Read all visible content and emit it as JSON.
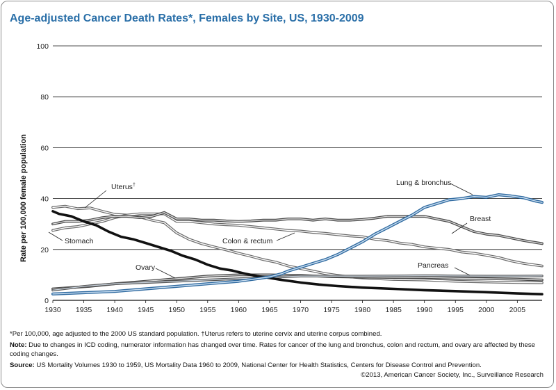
{
  "chart_data": {
    "type": "line",
    "title": "Age-adjusted Cancer Death Rates*, Females by Site, US, 1930-2009",
    "ylabel": "Rate per 100,000 female population",
    "xlabel": "",
    "xlim": [
      1930,
      2009
    ],
    "ylim": [
      0,
      100
    ],
    "x_ticks": [
      1930,
      1935,
      1940,
      1945,
      1950,
      1955,
      1960,
      1965,
      1970,
      1975,
      1980,
      1985,
      1990,
      1995,
      2000,
      2005
    ],
    "y_ticks": [
      0,
      20,
      40,
      60,
      80,
      100
    ],
    "grid": "horizontal",
    "series": [
      {
        "name": "Uterus",
        "label_text": "Uterus",
        "label_mark": "†",
        "style": "double-gray",
        "points": [
          [
            1930,
            36.5
          ],
          [
            1932,
            37
          ],
          [
            1934,
            36
          ],
          [
            1936,
            36.3
          ],
          [
            1938,
            35
          ],
          [
            1940,
            33.8
          ],
          [
            1942,
            33.5
          ],
          [
            1944,
            32.8
          ],
          [
            1946,
            31.5
          ],
          [
            1948,
            30.5
          ],
          [
            1950,
            26.5
          ],
          [
            1952,
            24
          ],
          [
            1954,
            22.3
          ],
          [
            1956,
            21
          ],
          [
            1958,
            19.8
          ],
          [
            1960,
            18.5
          ],
          [
            1962,
            17.3
          ],
          [
            1964,
            16
          ],
          [
            1966,
            15
          ],
          [
            1968,
            13.5
          ],
          [
            1970,
            12.5
          ],
          [
            1972,
            11.5
          ],
          [
            1974,
            10.5
          ],
          [
            1976,
            9.8
          ],
          [
            1978,
            9.2
          ],
          [
            1980,
            8.8
          ],
          [
            1985,
            8.2
          ],
          [
            1990,
            8
          ],
          [
            1995,
            7.5
          ],
          [
            2000,
            7.2
          ],
          [
            2005,
            7
          ],
          [
            2009,
            6.9
          ]
        ]
      },
      {
        "name": "Stomach",
        "label_text": "Stomach",
        "style": "bold-black",
        "points": [
          [
            1930,
            35
          ],
          [
            1931,
            34
          ],
          [
            1933,
            33
          ],
          [
            1935,
            31
          ],
          [
            1937,
            29.5
          ],
          [
            1939,
            27
          ],
          [
            1941,
            25
          ],
          [
            1943,
            24
          ],
          [
            1945,
            22.5
          ],
          [
            1947,
            21
          ],
          [
            1949,
            19.5
          ],
          [
            1951,
            17.5
          ],
          [
            1953,
            16
          ],
          [
            1955,
            14
          ],
          [
            1957,
            12.5
          ],
          [
            1959,
            11.7
          ],
          [
            1961,
            10.5
          ],
          [
            1963,
            9.5
          ],
          [
            1965,
            8.8
          ],
          [
            1967,
            8
          ],
          [
            1970,
            7
          ],
          [
            1973,
            6.2
          ],
          [
            1976,
            5.6
          ],
          [
            1980,
            5
          ],
          [
            1985,
            4.5
          ],
          [
            1990,
            4
          ],
          [
            1995,
            3.6
          ],
          [
            2000,
            3.2
          ],
          [
            2005,
            2.7
          ],
          [
            2009,
            2.4
          ]
        ]
      },
      {
        "name": "Breast",
        "label_text": "Breast",
        "style": "double-darkgray",
        "points": [
          [
            1930,
            30
          ],
          [
            1932,
            31
          ],
          [
            1934,
            31
          ],
          [
            1936,
            31.5
          ],
          [
            1938,
            32.5
          ],
          [
            1940,
            33
          ],
          [
            1942,
            33
          ],
          [
            1944,
            32.5
          ],
          [
            1946,
            33
          ],
          [
            1948,
            34.5
          ],
          [
            1950,
            32
          ],
          [
            1952,
            32
          ],
          [
            1954,
            31.5
          ],
          [
            1956,
            31.5
          ],
          [
            1958,
            31.2
          ],
          [
            1960,
            31
          ],
          [
            1962,
            31.2
          ],
          [
            1964,
            31.5
          ],
          [
            1966,
            31.5
          ],
          [
            1968,
            32
          ],
          [
            1970,
            32
          ],
          [
            1972,
            31.5
          ],
          [
            1974,
            32
          ],
          [
            1976,
            31.5
          ],
          [
            1978,
            31.5
          ],
          [
            1980,
            31.8
          ],
          [
            1982,
            32.3
          ],
          [
            1984,
            33
          ],
          [
            1986,
            33
          ],
          [
            1988,
            33
          ],
          [
            1990,
            33
          ],
          [
            1992,
            32
          ],
          [
            1994,
            31
          ],
          [
            1996,
            29
          ],
          [
            1998,
            27
          ],
          [
            2000,
            26
          ],
          [
            2002,
            25.5
          ],
          [
            2004,
            24.5
          ],
          [
            2006,
            23.5
          ],
          [
            2009,
            22.3
          ]
        ]
      },
      {
        "name": "Colon & rectum",
        "label_text": "Colon & rectum",
        "style": "double-gray",
        "points": [
          [
            1930,
            27.5
          ],
          [
            1932,
            28.5
          ],
          [
            1934,
            29
          ],
          [
            1936,
            30
          ],
          [
            1938,
            31
          ],
          [
            1940,
            32.5
          ],
          [
            1942,
            33.5
          ],
          [
            1944,
            34
          ],
          [
            1946,
            34
          ],
          [
            1948,
            34
          ],
          [
            1950,
            31
          ],
          [
            1952,
            31
          ],
          [
            1954,
            30.5
          ],
          [
            1956,
            30
          ],
          [
            1958,
            29.7
          ],
          [
            1960,
            29.5
          ],
          [
            1962,
            29
          ],
          [
            1964,
            28.5
          ],
          [
            1966,
            28
          ],
          [
            1968,
            27.5
          ],
          [
            1970,
            27.2
          ],
          [
            1972,
            26.7
          ],
          [
            1974,
            26.3
          ],
          [
            1976,
            25.8
          ],
          [
            1978,
            25.3
          ],
          [
            1980,
            25
          ],
          [
            1982,
            24
          ],
          [
            1984,
            23.5
          ],
          [
            1986,
            22.5
          ],
          [
            1988,
            22
          ],
          [
            1990,
            21
          ],
          [
            1992,
            20.5
          ],
          [
            1994,
            20
          ],
          [
            1996,
            19
          ],
          [
            1998,
            18.5
          ],
          [
            2000,
            17.7
          ],
          [
            2002,
            16.8
          ],
          [
            2004,
            15.5
          ],
          [
            2006,
            14.5
          ],
          [
            2009,
            13.5
          ]
        ]
      },
      {
        "name": "Lung & bronchus",
        "label_text": "Lung & bronchus",
        "style": "double-blue",
        "points": [
          [
            1930,
            2.5
          ],
          [
            1935,
            3
          ],
          [
            1940,
            3.5
          ],
          [
            1945,
            4.5
          ],
          [
            1950,
            5.5
          ],
          [
            1955,
            6.5
          ],
          [
            1960,
            7.5
          ],
          [
            1963,
            8.5
          ],
          [
            1965,
            9.2
          ],
          [
            1967,
            10.5
          ],
          [
            1968,
            11.5
          ],
          [
            1970,
            13
          ],
          [
            1972,
            14.5
          ],
          [
            1974,
            16
          ],
          [
            1976,
            18
          ],
          [
            1978,
            20.5
          ],
          [
            1980,
            23
          ],
          [
            1982,
            26
          ],
          [
            1984,
            28.5
          ],
          [
            1986,
            31
          ],
          [
            1988,
            33.5
          ],
          [
            1990,
            36.5
          ],
          [
            1992,
            38
          ],
          [
            1994,
            39.5
          ],
          [
            1996,
            40
          ],
          [
            1998,
            40.8
          ],
          [
            2000,
            40.5
          ],
          [
            2002,
            41.5
          ],
          [
            2004,
            41
          ],
          [
            2006,
            40.3
          ],
          [
            2008,
            39
          ],
          [
            2009,
            38.5
          ]
        ]
      },
      {
        "name": "Pancreas",
        "label_text": "Pancreas",
        "style": "double-midgray",
        "points": [
          [
            1930,
            4
          ],
          [
            1935,
            5.5
          ],
          [
            1940,
            6.5
          ],
          [
            1945,
            7
          ],
          [
            1950,
            7.5
          ],
          [
            1955,
            8
          ],
          [
            1960,
            8.5
          ],
          [
            1965,
            9
          ],
          [
            1970,
            9.5
          ],
          [
            1975,
            9.5
          ],
          [
            1980,
            9.5
          ],
          [
            1985,
            9.6
          ],
          [
            1990,
            9.7
          ],
          [
            1995,
            9.6
          ],
          [
            2000,
            9.5
          ],
          [
            2005,
            9.5
          ],
          [
            2009,
            9.6
          ]
        ]
      },
      {
        "name": "Ovary",
        "label_text": "Ovary",
        "style": "double-darkgray",
        "points": [
          [
            1930,
            4.5
          ],
          [
            1933,
            5
          ],
          [
            1936,
            5.5
          ],
          [
            1940,
            6.5
          ],
          [
            1945,
            7.5
          ],
          [
            1950,
            8.5
          ],
          [
            1955,
            9.5
          ],
          [
            1960,
            10
          ],
          [
            1965,
            10
          ],
          [
            1970,
            9.8
          ],
          [
            1975,
            9.3
          ],
          [
            1980,
            9.1
          ],
          [
            1985,
            9
          ],
          [
            1990,
            9
          ],
          [
            1995,
            8.7
          ],
          [
            2000,
            8.5
          ],
          [
            2005,
            8.3
          ],
          [
            2009,
            8
          ]
        ]
      }
    ]
  },
  "footnote": "*Per 100,000, age adjusted to the 2000 US standard population. †Uterus refers to uterine cervix and uterine corpus combined.",
  "note": {
    "label": "Note:",
    "text": " Due to changes in ICD coding, numerator information has changed over time. Rates for cancer of the lung and bronchus, colon and rectum, and ovary are affected by these coding changes."
  },
  "source": {
    "label": "Source:",
    "text": " US Mortality Volumes 1930 to 1959, US Mortality Data 1960 to 2009, National Center for Health Statistics, Centers for Disease Control and Prevention."
  },
  "credit": "©2013, American Cancer Society, Inc., Surveillance Research",
  "colors": {
    "title": "#2a6fa8",
    "blue": "#2f6aa0",
    "black": "#111111",
    "darkgray": "#4a4a4a",
    "gray": "#6a6a6a",
    "midgray": "#555555"
  }
}
